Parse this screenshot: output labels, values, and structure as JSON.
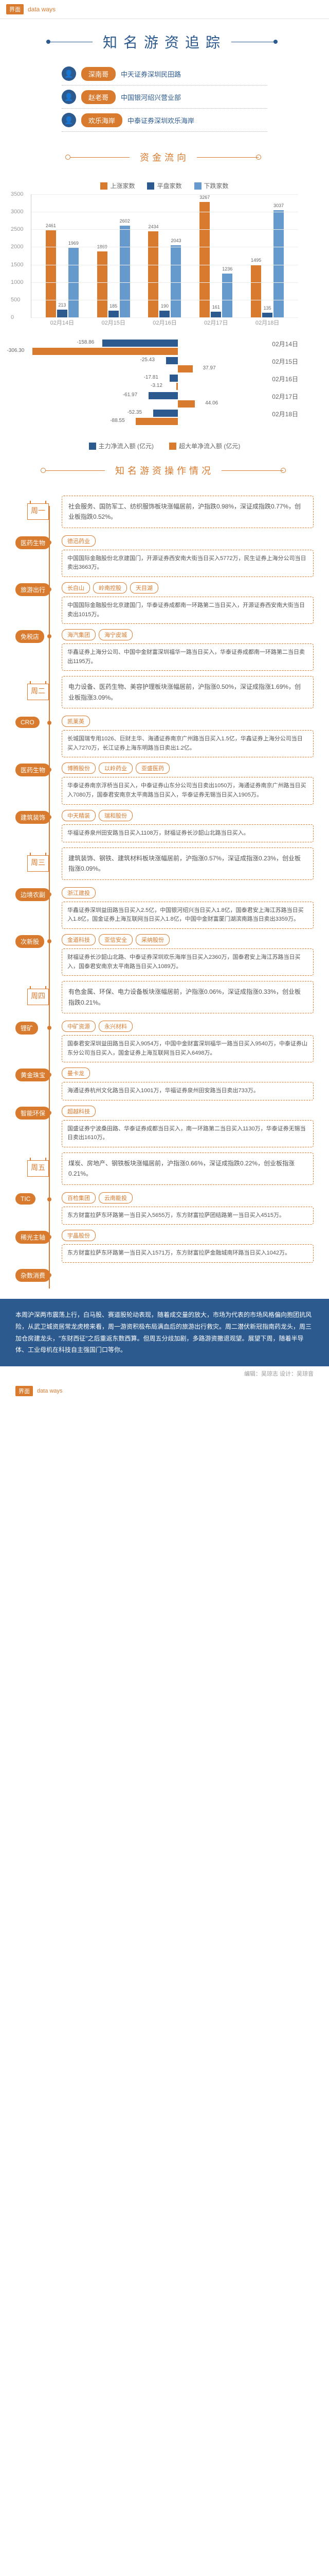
{
  "header": {
    "logo_text": "界面",
    "logo_sub": "data ways"
  },
  "title": "知名游资追踪",
  "roles": [
    {
      "name": "深南哥",
      "desc": "中天证券深圳民田路"
    },
    {
      "name": "赵老哥",
      "desc": "中国银河绍兴营业部"
    },
    {
      "name": "欢乐海岸",
      "desc": "中泰证券深圳欢乐海岸"
    }
  ],
  "section_flow": "资金流向",
  "bar_chart": {
    "legend": [
      "上涨家数",
      "平盘家数",
      "下跌家数"
    ],
    "colors": [
      "#d97b2f",
      "#2c5a8f",
      "#6699cc"
    ],
    "ymax": 3500,
    "ytick": 500,
    "dates": [
      "02月14日",
      "02月15日",
      "02月16日",
      "02月17日",
      "02月18日"
    ],
    "series": [
      {
        "up": 2461,
        "flat": 213,
        "down": 1969
      },
      {
        "up": 1869,
        "flat": 185,
        "down": 2602
      },
      {
        "up": 2434,
        "flat": 190,
        "down": 2043
      },
      {
        "up": 3267,
        "flat": 161,
        "down": 1236
      },
      {
        "up": 1495,
        "flat": 135,
        "down": 3037
      }
    ]
  },
  "hbar": {
    "legend": [
      "主力净流入额 (亿元)",
      "超大单净流入额 (亿元)"
    ],
    "colors": [
      "#2c5a8f",
      "#d97b2f"
    ],
    "maxabs": 310,
    "rows": [
      {
        "main": -158.86,
        "super": -306.3,
        "date": "02月14日"
      },
      {
        "main": -25.43,
        "super": 37.97,
        "date": "02月15日"
      },
      {
        "main": -17.81,
        "super": -3.12,
        "date": "02月16日"
      },
      {
        "main": -61.97,
        "super": 44.06,
        "date": "02月17日"
      },
      {
        "main": -52.35,
        "super": -88.55,
        "date": "02月18日"
      }
    ]
  },
  "section_ops": "知名游资操作情况",
  "days": [
    {
      "label": "周一",
      "summary": "社会服务、国防军工、纺织服饰板块涨幅居前，沪指跌0.98%，深证成指跌0.77%，创业板指跌0.52%。",
      "nodes": [
        {
          "main": "医药生物",
          "subs": [
            "德迅药业"
          ],
          "text": "中国国际金融股份北京建国门，开源证券西安南大街当日买入5772万，民生证券上海分公司当日卖出3663万。"
        },
        {
          "main": "旅游出行",
          "subs": [
            "长白山",
            "岭南控股",
            "天目湖"
          ],
          "text": "中国国际金融股份北京建国门，华泰证券成都南一环路第二当日买入，开源证券西安南大街当日卖出1015万。"
        },
        {
          "main": "免税店",
          "subs": [
            "海汽集团",
            "海宁皮城"
          ],
          "text": "华鑫证券上海分公司、中国中金财富深圳福华一路当日买入，华泰证券成都南一环路第二当日卖出1195万。"
        }
      ]
    },
    {
      "label": "周二",
      "summary": "电力设备、医药生物、美容护理板块涨幅居前，沪指涨0.50%，深证成指涨1.69%，创业板指涨3.09%。",
      "nodes": [
        {
          "main": "CRO",
          "subs": [
            "凯莱英"
          ],
          "text": "长城国瑞专用1026、巨财主华、海通证券南京广州路当日买入1.5亿，华鑫证券上海分公司当日买入7270万，长江证券上海东明路当日卖出1.2亿。"
        },
        {
          "main": "医药生物",
          "subs": [
            "博腾股份",
            "以岭药业",
            "亚盛医药"
          ],
          "text": "华泰证券南京浮桥当日买入，中泰证券山东分公司当日卖出1050万，海通证券南京广州路当日买入7080万，国泰君安南京太平南路当日买入，华泰证券无锡当日买入1905万。"
        },
        {
          "main": "建筑装饰",
          "subs": [
            "中天精装",
            "瑞和股份"
          ],
          "text": "华福证券泉州田安路当日买入1108万，财福证券长沙韶山北路当日买入。"
        }
      ]
    },
    {
      "label": "周三",
      "summary": "建筑装饰、钢铁、建筑材料板块涨幅居前，沪指涨0.57%，深证成指涨0.23%，创业板指涨0.09%。",
      "nodes": [
        {
          "main": "边境农副",
          "subs": [
            "浙江建投"
          ],
          "text": "华鑫证券深圳益田路当日买入2.5亿，中国银河绍兴当日买入1.8亿，国泰君安上海江苏路当日买入1.8亿，国金证券上海互联网当日买入1.8亿，中国中金财富厦门湖滨南路当日卖出3359万。"
        },
        {
          "main": "次新股",
          "subs": [
            "金道科技",
            "亚信安全",
            "采纳股份"
          ],
          "text": "财福证券长沙韶山北路、中泰证券深圳欢乐海岸当日买入2360万，国泰君安上海江苏路当日买入，国泰君安南京太平南路当日买入1089万。"
        }
      ]
    },
    {
      "label": "周四",
      "summary": "有色金属、环保、电力设备板块涨幅居前，沪指涨0.06%，深证成指涨0.33%，创业板指跌0.21%。",
      "nodes": [
        {
          "main": "锂矿",
          "subs": [
            "中矿资源",
            "永兴材料"
          ],
          "text": "国泰君安深圳益田路当日买入9054万，中国中金财富深圳福华一路当日买入9540万，中泰证券山东分公司当日买入，国金证券上海互联网当日买入6498万。"
        },
        {
          "main": "黄金珠宝",
          "subs": [
            "曼卡龙"
          ],
          "text": "海通证券杭州文化路当日买入1001万，华福证券泉州田安路当日卖出733万。"
        },
        {
          "main": "智能环保",
          "subs": [
            "超越科技"
          ],
          "text": "国盛证券宁波桑田路、华泰证券成都当日买入，南一环路第二当日买入1130万，华泰证券无锡当日卖出1610万。"
        }
      ]
    },
    {
      "label": "周五",
      "summary": "煤炭、房地产、钢铁板块涨幅居前，沪指涨0.66%，深证成指跌0.22%，创业板指涨0.21%。",
      "nodes": [
        {
          "main": "TIC",
          "subs": [
            "百检集团",
            "云南能投"
          ],
          "text": "东方财富拉萨东环路第一当日买入5655万，东方财富拉萨团结路第一当日买入4515万。"
        },
        {
          "main": "稀光主轴",
          "subs": [
            "宇晶股份"
          ],
          "text": "东方财富拉萨东环路第一当日买入1571万，东方财富拉萨金融城南环路当日买入1042万。"
        },
        {
          "main": "杂数消费",
          "subs": [],
          "text": ""
        }
      ]
    }
  ],
  "footer": "本周沪深两市震荡上行，白马股、赛道股轮动表现，随着成交量的放大，市场为代表的市场风格偏向抱团抗风险，从武卫城资居常龙虎榜来看，周一游资积极布局满血后的旅游出行救灾。周二潜伏新冠指南药龙头，周三加仓房建龙头，\"东财西征\"之后重返东数西算。但周五分歧加剧，多路游资撤退观望。展望下周，随着半导体、工业母机在科技自主强国门口等你。",
  "credit": "编辑：吴琼志  设计：吴琼音"
}
